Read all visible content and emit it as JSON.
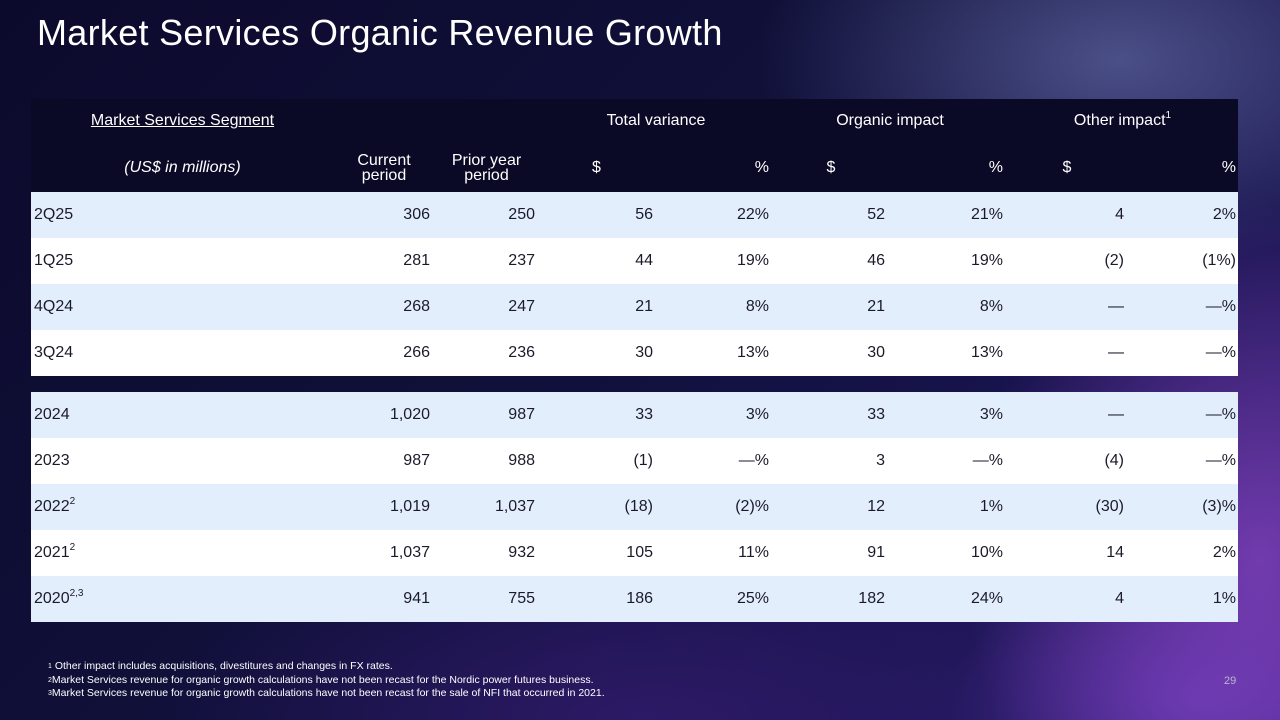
{
  "title": "Market Services Organic Revenue Growth",
  "page_number": "29",
  "table": {
    "header": {
      "segment": "Market Services Segment",
      "units": "(US$ in millions)",
      "current_period_line1": "Current",
      "current_period_line2": "period",
      "prior_year_line1": "Prior year",
      "prior_year_line2": "period",
      "total_variance": "Total variance",
      "organic_impact": "Organic impact",
      "other_impact": "Other impact",
      "other_impact_sup": "1",
      "dollar": "$",
      "percent": "%"
    },
    "quarterly_rows": [
      {
        "label": "2Q25",
        "sup": "",
        "current": "306",
        "prior": "250",
        "tv_d": "56",
        "tv_p": "22%",
        "oi_d": "52",
        "oi_p": "21%",
        "ot_d": "4",
        "ot_p": "2%"
      },
      {
        "label": "1Q25",
        "sup": "",
        "current": "281",
        "prior": "237",
        "tv_d": "44",
        "tv_p": "19%",
        "oi_d": "46",
        "oi_p": "19%",
        "ot_d": "(2)",
        "ot_p": "(1%)"
      },
      {
        "label": "4Q24",
        "sup": "",
        "current": "268",
        "prior": "247",
        "tv_d": "21",
        "tv_p": "8%",
        "oi_d": "21",
        "oi_p": "8%",
        "ot_d": "—",
        "ot_p": "—%"
      },
      {
        "label": "3Q24",
        "sup": "",
        "current": "266",
        "prior": "236",
        "tv_d": "30",
        "tv_p": "13%",
        "oi_d": "30",
        "oi_p": "13%",
        "ot_d": "—",
        "ot_p": "—%"
      }
    ],
    "annual_rows": [
      {
        "label": "2024",
        "sup": "",
        "current": "1,020",
        "prior": "987",
        "tv_d": "33",
        "tv_p": "3%",
        "oi_d": "33",
        "oi_p": "3%",
        "ot_d": "—",
        "ot_p": "—%"
      },
      {
        "label": "2023",
        "sup": "",
        "current": "987",
        "prior": "988",
        "tv_d": "(1)",
        "tv_p": "—%",
        "oi_d": "3",
        "oi_p": "—%",
        "ot_d": "(4)",
        "ot_p": "—%"
      },
      {
        "label": "2022",
        "sup": "2",
        "current": "1,019",
        "prior": "1,037",
        "tv_d": "(18)",
        "tv_p": "(2)%",
        "oi_d": "12",
        "oi_p": "1%",
        "ot_d": "(30)",
        "ot_p": "(3)%"
      },
      {
        "label": "2021",
        "sup": "2",
        "current": "1,037",
        "prior": "932",
        "tv_d": "105",
        "tv_p": "11%",
        "oi_d": "91",
        "oi_p": "10%",
        "ot_d": "14",
        "ot_p": "2%"
      },
      {
        "label": "2020",
        "sup": "2,3",
        "current": "941",
        "prior": "755",
        "tv_d": "186",
        "tv_p": "25%",
        "oi_d": "182",
        "oi_p": "24%",
        "ot_d": "4",
        "ot_p": "1%"
      }
    ]
  },
  "footnotes": [
    {
      "num": "1",
      "text": "Other impact includes acquisitions, divestitures and changes in FX rates."
    },
    {
      "num": "2",
      "text": "Market Services revenue for organic growth calculations have not been recast for the Nordic power futures business."
    },
    {
      "num": "3",
      "text": "Market Services revenue for organic growth calculations have not been recast for the sale of NFI that occurred in 2021."
    }
  ]
}
